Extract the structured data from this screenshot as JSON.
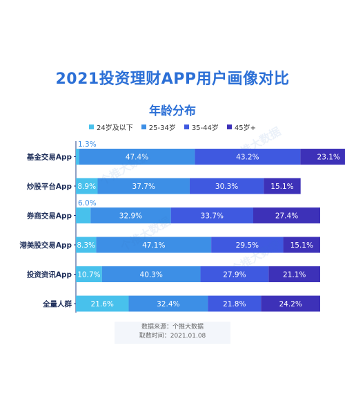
{
  "title": "2021投资理财APP用户画像对比",
  "subtitle": "年龄分布",
  "source_line1": "数据来源：个推大数据",
  "source_line2": "取数时间：2021.01.08",
  "watermark_text": "个推大数据",
  "chart_data": {
    "type": "bar",
    "orientation": "horizontal",
    "stacked": true,
    "percent": true,
    "categories": [
      "基金交易App",
      "炒股平台App",
      "券商交易App",
      "港美股交易App",
      "投资资讯App",
      "全量人群"
    ],
    "series": [
      {
        "name": "24岁及以下",
        "color": "#48c1ec",
        "values": [
          1.3,
          8.9,
          6.0,
          8.3,
          10.7,
          21.6
        ]
      },
      {
        "name": "25-34岁",
        "color": "#3d8fe6",
        "values": [
          47.4,
          37.7,
          32.9,
          47.1,
          40.3,
          32.4
        ]
      },
      {
        "name": "35-44岁",
        "color": "#3f59e0",
        "values": [
          43.2,
          30.3,
          33.7,
          29.5,
          27.9,
          21.8
        ]
      },
      {
        "name": "45岁+",
        "color": "#3d31b8",
        "values": [
          23.1,
          15.1,
          27.4,
          15.1,
          21.1,
          24.2
        ]
      }
    ]
  }
}
